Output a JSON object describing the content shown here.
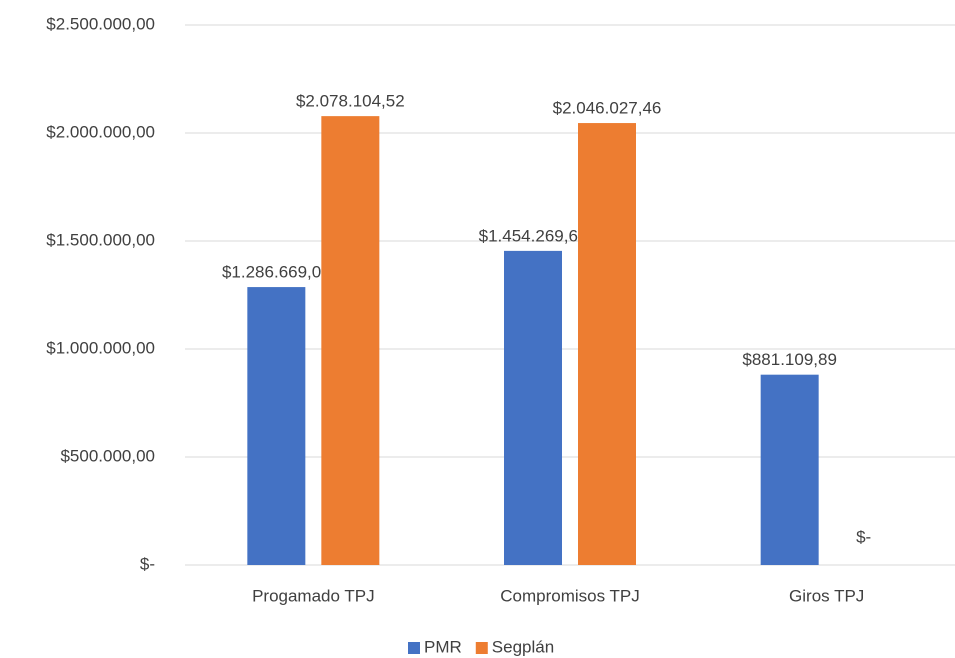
{
  "chart_data": {
    "type": "bar",
    "categories": [
      "Progamado TPJ",
      "Compromisos TPJ",
      "Giros TPJ"
    ],
    "series": [
      {
        "name": "PMR",
        "color": "#4472c4",
        "values": [
          1286669.02,
          1454269.69,
          881109.89
        ],
        "value_labels": [
          "$1.286.669,02",
          "$1.454.269,69",
          "$881.109,89"
        ]
      },
      {
        "name": "Segplán",
        "color": "#ed7d31",
        "values": [
          2078104.52,
          2046027.46,
          0
        ],
        "value_labels": [
          "$2.078.104,52",
          "$2.046.027,46",
          "$-"
        ]
      }
    ],
    "ylim": [
      0,
      2500000
    ],
    "yticks": [
      {
        "value": 0,
        "label": "$-"
      },
      {
        "value": 500000,
        "label": "$500.000,00"
      },
      {
        "value": 1000000,
        "label": "$1.000.000,00"
      },
      {
        "value": 1500000,
        "label": "$1.500.000,00"
      },
      {
        "value": 2000000,
        "label": "$2.000.000,00"
      },
      {
        "value": 2500000,
        "label": "$2.500.000,00"
      }
    ],
    "grid": true,
    "legend": "bottom"
  }
}
